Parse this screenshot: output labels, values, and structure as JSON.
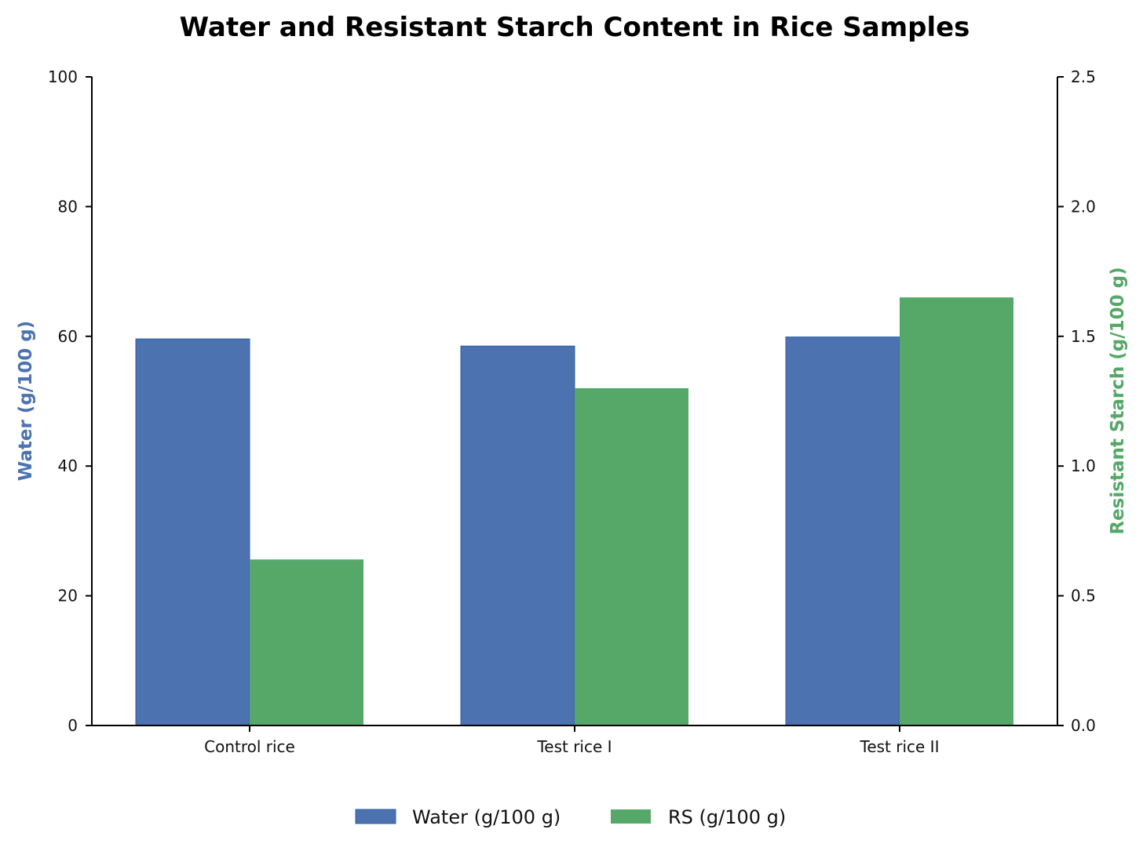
{
  "chart_data": {
    "type": "bar",
    "title": "Water and Resistant Starch Content in Rice Samples",
    "categories": [
      "Control rice",
      "Test rice I",
      "Test rice II"
    ],
    "series": [
      {
        "name": "Water (g/100 g)",
        "axis": "left",
        "color": "#4c72b0",
        "values": [
          59.6,
          58.5,
          59.9
        ]
      },
      {
        "name": "RS (g/100 g)",
        "axis": "right",
        "color": "#55a868",
        "values": [
          0.64,
          1.3,
          1.65
        ]
      }
    ],
    "ylabel": "Water (g/100 g)",
    "ylabel_color": "#4c72b0",
    "ylim": [
      0,
      100
    ],
    "yticks": [
      "0",
      "20",
      "40",
      "60",
      "80",
      "100"
    ],
    "y2label": "Resistant Starch (g/100 g)",
    "y2label_color": "#55a868",
    "y2lim": [
      0,
      2.5
    ],
    "y2ticks": [
      "0.0",
      "0.5",
      "1.0",
      "1.5",
      "2.0",
      "2.5"
    ],
    "grid": false,
    "legend": {
      "placement": "bottom-center",
      "entries": [
        "Water (g/100 g)",
        "RS (g/100 g)"
      ]
    }
  }
}
